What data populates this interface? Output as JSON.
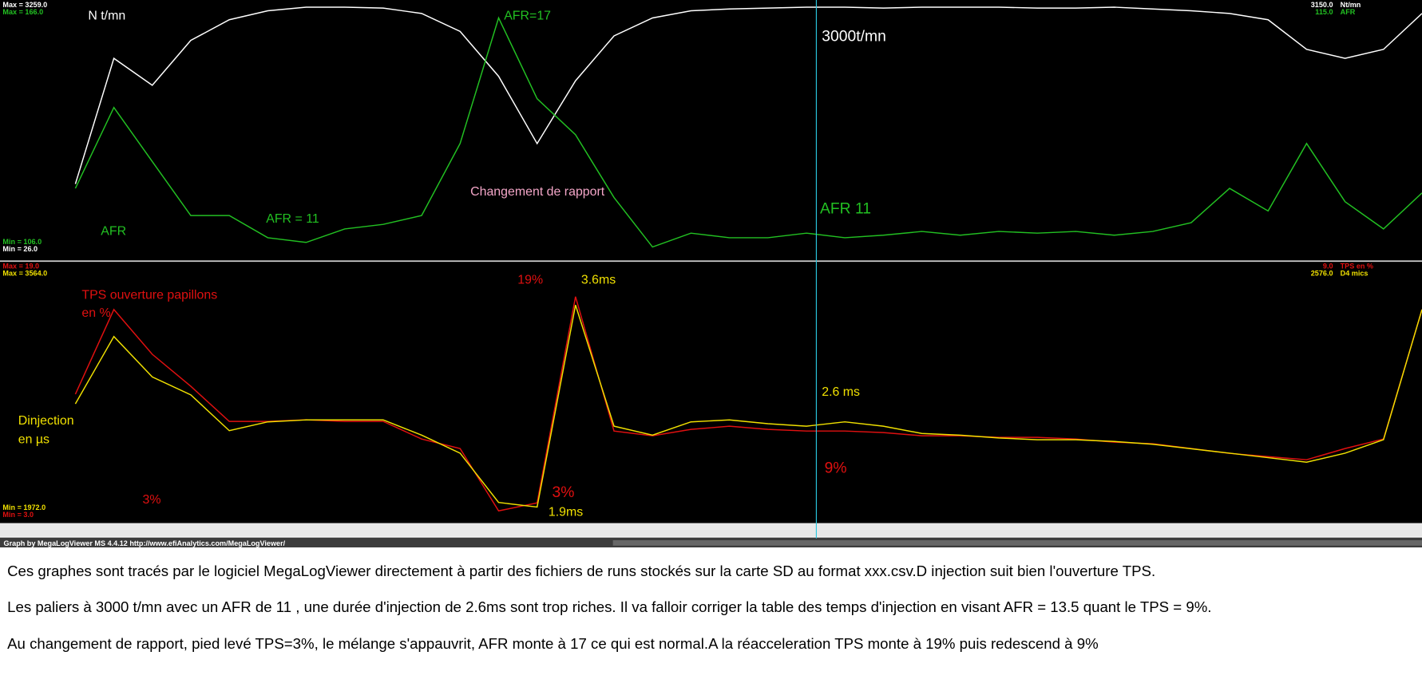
{
  "top_panel": {
    "series": [
      {
        "name": "Nt/mn",
        "color": "#ffffff",
        "cursor_value": "3150.0",
        "ylim": [
          {
            "value": 26,
            "label": "Min = 26.0"
          },
          {
            "value": 3259,
            "label": "Max = 3259.0"
          }
        ],
        "values": [
          950,
          2566,
          2220,
          2797,
          3063,
          3178,
          3224,
          3224,
          3213,
          3143,
          2913,
          2335,
          1469,
          2277,
          2855,
          3086,
          3178,
          3201,
          3213,
          3224,
          3224,
          3213,
          3224,
          3224,
          3224,
          3213,
          3213,
          3224,
          3201,
          3178,
          3143,
          3063,
          2682,
          2566,
          2682,
          3143
        ]
      },
      {
        "name": "AFR",
        "color": "#22c022",
        "cursor_value": "115.0",
        "ylim": [
          {
            "value": 106,
            "label": "Min = 106.0"
          },
          {
            "value": 166,
            "label": "Max = 166.0"
          }
        ],
        "values": [
          122.1,
          141.4,
          128.5,
          115.6,
          115.6,
          110.3,
          109.2,
          112.4,
          113.5,
          115.6,
          132.8,
          162.8,
          143.5,
          134.9,
          119.9,
          108.1,
          111.4,
          110.3,
          110.3,
          111.4,
          110.3,
          110.9,
          111.8,
          110.9,
          111.8,
          111.4,
          111.8,
          110.9,
          111.8,
          113.9,
          122.1,
          116.7,
          132.8,
          118.9,
          112.4,
          121
        ]
      }
    ],
    "annotations": [
      {
        "text": "N t/mn",
        "color": "#ffffff"
      },
      {
        "text": "AFR=17",
        "color": "#22c022"
      },
      {
        "text": "3000t/mn",
        "color": "#ffffff"
      },
      {
        "text": "Changement de rapport",
        "color": "#f4a6c8"
      },
      {
        "text": "AFR",
        "color": "#22c022"
      },
      {
        "text": "AFR = 11",
        "color": "#22c022"
      },
      {
        "text": "AFR 11",
        "color": "#22c022"
      }
    ]
  },
  "bottom_panel": {
    "series": [
      {
        "name": "TPS en %",
        "color": "#e01010",
        "cursor_value": "9.0",
        "ylim": [
          {
            "value": 3,
            "label": "Min = 3.0"
          },
          {
            "value": 19,
            "label": "Max = 19.0"
          }
        ],
        "values": [
          10.9,
          16.2,
          13.4,
          11.4,
          9.2,
          9.2,
          9.3,
          9.2,
          9.2,
          8.1,
          7.5,
          3.6,
          4.1,
          17.0,
          8.6,
          8.3,
          8.7,
          8.9,
          8.7,
          8.6,
          8.6,
          8.5,
          8.3,
          8.3,
          8.2,
          8.2,
          8.1,
          7.9,
          7.8,
          7.5,
          7.2,
          7.0,
          6.8,
          7.5,
          8.1,
          16.2
        ]
      },
      {
        "name": "D4 mics",
        "color": "#f0e000",
        "cursor_value": "2576.0",
        "ylim": [
          {
            "value": 1972,
            "label": "Min = 1972.0"
          },
          {
            "value": 3564,
            "label": "Max = 3564.0"
          }
        ],
        "values": [
          2698,
          3117,
          2866,
          2754,
          2531,
          2586,
          2598,
          2598,
          2598,
          2503,
          2391,
          2084,
          2056,
          3313,
          2559,
          2503,
          2586,
          2598,
          2575,
          2559,
          2586,
          2559,
          2514,
          2503,
          2486,
          2475,
          2475,
          2464,
          2447,
          2419,
          2391,
          2363,
          2335,
          2391,
          2475,
          3285
        ]
      }
    ],
    "annotations": [
      {
        "text": "19%",
        "color": "#e01010"
      },
      {
        "text": "3.6ms",
        "color": "#f0e000"
      },
      {
        "text": "TPS ouverture papillons",
        "color": "#e01010"
      },
      {
        "text": "en %",
        "color": "#e01010"
      },
      {
        "text": "2.6 ms",
        "color": "#f0e000"
      },
      {
        "text": "Dinjection",
        "color": "#f0e000"
      },
      {
        "text": "en µs",
        "color": "#f0e000"
      },
      {
        "text": "3%",
        "color": "#e01010"
      },
      {
        "text": "3%",
        "color": "#e01010"
      },
      {
        "text": "1.9ms",
        "color": "#f0e000"
      },
      {
        "text": "9%",
        "color": "#e01010"
      }
    ]
  },
  "footer": "Graph by MegaLogViewer MS 4.4.12 http://www.efiAnalytics.com/MegaLogViewer/",
  "paragraphs": [
    "Ces graphes sont tracés par le logiciel MegaLogViewer directement à partir des fichiers de runs stockés sur la carte SD au format xxx.csv.D injection suit bien l'ouverture TPS.",
    "Les paliers à 3000 t/mn avec un AFR de 11 , une durée d'injection de 2.6ms sont trop riches. Il va falloir corriger la table des temps d'injection en visant AFR = 13.5 quant le TPS = 9%.",
    "Au changement de rapport, pied levé TPS=3%, le mélange s'appauvrit, AFR monte à 17 ce qui est normal.A la réacceleration TPS monte à 19% puis redescend à 9%"
  ]
}
